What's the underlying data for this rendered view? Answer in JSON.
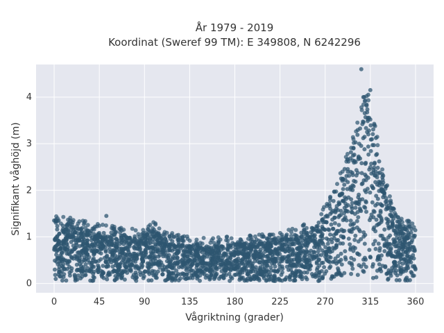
{
  "chart_data": {
    "type": "scatter",
    "title_line1": "År 1979 - 2019",
    "title_line2": "Koordinat (Sweref 99 TM): E 349808, N 6242296",
    "xlabel": "Vågriktning (grader)",
    "ylabel": "Signifikant våghöjd (m)",
    "xlim": [
      -18,
      378
    ],
    "ylim": [
      -0.2,
      4.7
    ],
    "xticks": [
      0,
      45,
      90,
      135,
      180,
      225,
      270,
      315,
      360
    ],
    "yticks": [
      0,
      1,
      2,
      3,
      4
    ],
    "grid": true,
    "point_color": "#2e5670",
    "background_color": "#e5e7ef",
    "upper_envelope": [
      [
        0,
        1.3
      ],
      [
        10,
        1.25
      ],
      [
        25,
        1.2
      ],
      [
        45,
        1.1
      ],
      [
        60,
        1.05
      ],
      [
        75,
        1.0
      ],
      [
        90,
        1.05
      ],
      [
        100,
        1.15
      ],
      [
        110,
        1.0
      ],
      [
        125,
        0.85
      ],
      [
        150,
        0.8
      ],
      [
        180,
        0.85
      ],
      [
        200,
        0.85
      ],
      [
        225,
        0.95
      ],
      [
        245,
        1.05
      ],
      [
        260,
        1.2
      ],
      [
        270,
        1.5
      ],
      [
        280,
        1.9
      ],
      [
        290,
        2.5
      ],
      [
        300,
        3.1
      ],
      [
        305,
        3.6
      ],
      [
        310,
        3.9
      ],
      [
        315,
        3.7
      ],
      [
        320,
        3.2
      ],
      [
        325,
        2.6
      ],
      [
        330,
        2.1
      ],
      [
        335,
        1.7
      ],
      [
        340,
        1.4
      ],
      [
        350,
        1.2
      ],
      [
        360,
        1.2
      ]
    ],
    "notable_points": [
      {
        "x": 306,
        "y": 4.6
      },
      {
        "x": 315,
        "y": 4.15
      },
      {
        "x": 313,
        "y": 4.05
      },
      {
        "x": 308,
        "y": 4.0
      },
      {
        "x": 52,
        "y": 1.45
      },
      {
        "x": 0,
        "y": 1.35
      },
      {
        "x": 340,
        "y": 1.45
      }
    ]
  }
}
